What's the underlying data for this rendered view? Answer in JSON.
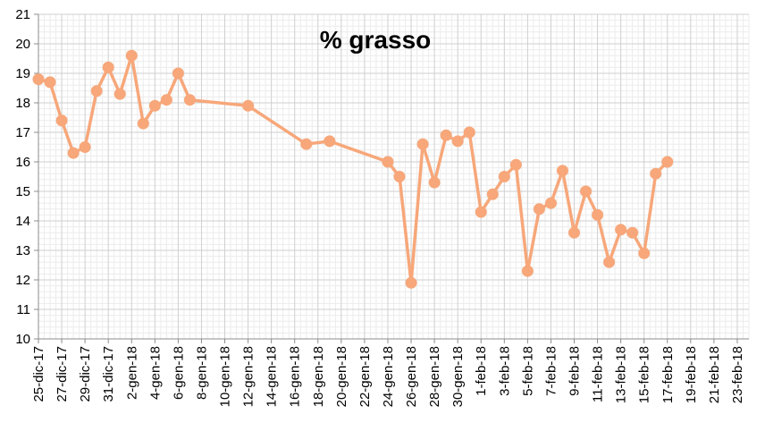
{
  "chart_data": {
    "type": "line",
    "title": "% grasso",
    "xlabel": "",
    "ylabel": "",
    "ylim": [
      10,
      21
    ],
    "xlim": [
      "2017-12-25",
      "2018-02-24"
    ],
    "grid": true,
    "legend": "none",
    "y_ticks": [
      "10",
      "11",
      "12",
      "13",
      "14",
      "15",
      "16",
      "17",
      "18",
      "19",
      "20",
      "21"
    ],
    "x_ticks": [
      {
        "date": "2017-12-25",
        "label": "25-dic-17"
      },
      {
        "date": "2017-12-27",
        "label": "27-dic-17"
      },
      {
        "date": "2017-12-29",
        "label": "29-dic-17"
      },
      {
        "date": "2017-12-31",
        "label": "31-dic-17"
      },
      {
        "date": "2018-01-02",
        "label": "2-gen-18"
      },
      {
        "date": "2018-01-04",
        "label": "4-gen-18"
      },
      {
        "date": "2018-01-06",
        "label": "6-gen-18"
      },
      {
        "date": "2018-01-08",
        "label": "8-gen-18"
      },
      {
        "date": "2018-01-10",
        "label": "10-gen-18"
      },
      {
        "date": "2018-01-12",
        "label": "12-gen-18"
      },
      {
        "date": "2018-01-14",
        "label": "14-gen-18"
      },
      {
        "date": "2018-01-16",
        "label": "16-gen-18"
      },
      {
        "date": "2018-01-18",
        "label": "18-gen-18"
      },
      {
        "date": "2018-01-20",
        "label": "20-gen-18"
      },
      {
        "date": "2018-01-22",
        "label": "22-gen-18"
      },
      {
        "date": "2018-01-24",
        "label": "24-gen-18"
      },
      {
        "date": "2018-01-26",
        "label": "26-gen-18"
      },
      {
        "date": "2018-01-28",
        "label": "28-gen-18"
      },
      {
        "date": "2018-01-30",
        "label": "30-gen-18"
      },
      {
        "date": "2018-02-01",
        "label": "1-feb-18"
      },
      {
        "date": "2018-02-03",
        "label": "3-feb-18"
      },
      {
        "date": "2018-02-05",
        "label": "5-feb-18"
      },
      {
        "date": "2018-02-07",
        "label": "7-feb-18"
      },
      {
        "date": "2018-02-09",
        "label": "9-feb-18"
      },
      {
        "date": "2018-02-11",
        "label": "11-feb-18"
      },
      {
        "date": "2018-02-13",
        "label": "13-feb-18"
      },
      {
        "date": "2018-02-15",
        "label": "15-feb-18"
      },
      {
        "date": "2018-02-17",
        "label": "17-feb-18"
      },
      {
        "date": "2018-02-19",
        "label": "19-feb-18"
      },
      {
        "date": "2018-02-21",
        "label": "21-feb-18"
      },
      {
        "date": "2018-02-23",
        "label": "23-feb-18"
      }
    ],
    "series": [
      {
        "name": "",
        "color": "#F7A77A",
        "points": [
          {
            "x": "2017-12-25",
            "y": 18.8
          },
          {
            "x": "2017-12-26",
            "y": 18.7
          },
          {
            "x": "2017-12-27",
            "y": 17.4
          },
          {
            "x": "2017-12-28",
            "y": 16.3
          },
          {
            "x": "2017-12-29",
            "y": 16.5
          },
          {
            "x": "2017-12-30",
            "y": 18.4
          },
          {
            "x": "2017-12-31",
            "y": 19.2
          },
          {
            "x": "2018-01-01",
            "y": 18.3
          },
          {
            "x": "2018-01-02",
            "y": 19.6
          },
          {
            "x": "2018-01-03",
            "y": 17.3
          },
          {
            "x": "2018-01-04",
            "y": 17.9
          },
          {
            "x": "2018-01-05",
            "y": 18.1
          },
          {
            "x": "2018-01-06",
            "y": 19.0
          },
          {
            "x": "2018-01-07",
            "y": 18.1
          },
          {
            "x": "2018-01-12",
            "y": 17.9
          },
          {
            "x": "2018-01-17",
            "y": 16.6
          },
          {
            "x": "2018-01-19",
            "y": 16.7
          },
          {
            "x": "2018-01-24",
            "y": 16.0
          },
          {
            "x": "2018-01-25",
            "y": 15.5
          },
          {
            "x": "2018-01-26",
            "y": 11.9
          },
          {
            "x": "2018-01-27",
            "y": 16.6
          },
          {
            "x": "2018-01-28",
            "y": 15.3
          },
          {
            "x": "2018-01-29",
            "y": 16.9
          },
          {
            "x": "2018-01-30",
            "y": 16.7
          },
          {
            "x": "2018-01-31",
            "y": 17.0
          },
          {
            "x": "2018-02-01",
            "y": 14.3
          },
          {
            "x": "2018-02-02",
            "y": 14.9
          },
          {
            "x": "2018-02-03",
            "y": 15.5
          },
          {
            "x": "2018-02-04",
            "y": 15.9
          },
          {
            "x": "2018-02-05",
            "y": 12.3
          },
          {
            "x": "2018-02-06",
            "y": 14.4
          },
          {
            "x": "2018-02-07",
            "y": 14.6
          },
          {
            "x": "2018-02-08",
            "y": 15.7
          },
          {
            "x": "2018-02-09",
            "y": 13.6
          },
          {
            "x": "2018-02-10",
            "y": 15.0
          },
          {
            "x": "2018-02-11",
            "y": 14.2
          },
          {
            "x": "2018-02-12",
            "y": 12.6
          },
          {
            "x": "2018-02-13",
            "y": 13.7
          },
          {
            "x": "2018-02-14",
            "y": 13.6
          },
          {
            "x": "2018-02-15",
            "y": 12.9
          },
          {
            "x": "2018-02-16",
            "y": 15.6
          },
          {
            "x": "2018-02-17",
            "y": 16.0
          }
        ]
      }
    ]
  }
}
